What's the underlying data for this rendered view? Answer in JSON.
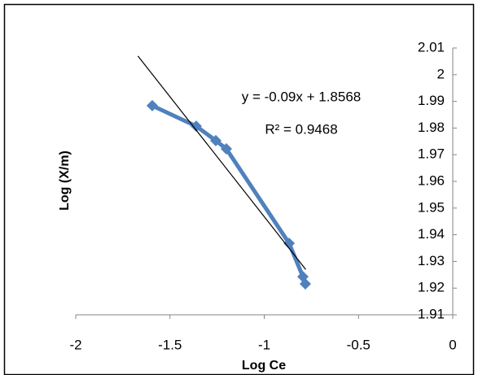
{
  "chart_data": {
    "type": "scatter",
    "x_label": "Log Ce",
    "y_label": "Log (X/m)",
    "series": [
      {
        "color": "#4f81bd",
        "x": [
          -1.594,
          -1.361,
          -1.257,
          -1.201,
          -0.868,
          -0.795,
          -0.782
        ],
        "values": [
          1.9884,
          1.9807,
          1.9753,
          1.9722,
          1.9368,
          1.9243,
          1.9216
        ]
      }
    ],
    "trendline": {
      "color": "#000000",
      "x": [
        -1.67,
        -0.78
      ],
      "values": [
        2.007,
        1.927
      ],
      "equation": "y = -0.09x + 1.8568",
      "r_squared": "R² = 0.9468"
    },
    "xlim": [
      -2,
      0
    ],
    "xticks": [
      -2,
      -1.5,
      -1,
      -0.5,
      0
    ],
    "ylim": [
      1.91,
      2.01
    ],
    "yticks": [
      1.91,
      1.92,
      1.93,
      1.94,
      1.95,
      1.96,
      1.97,
      1.98,
      1.99,
      2,
      2.01
    ],
    "grid": false
  }
}
